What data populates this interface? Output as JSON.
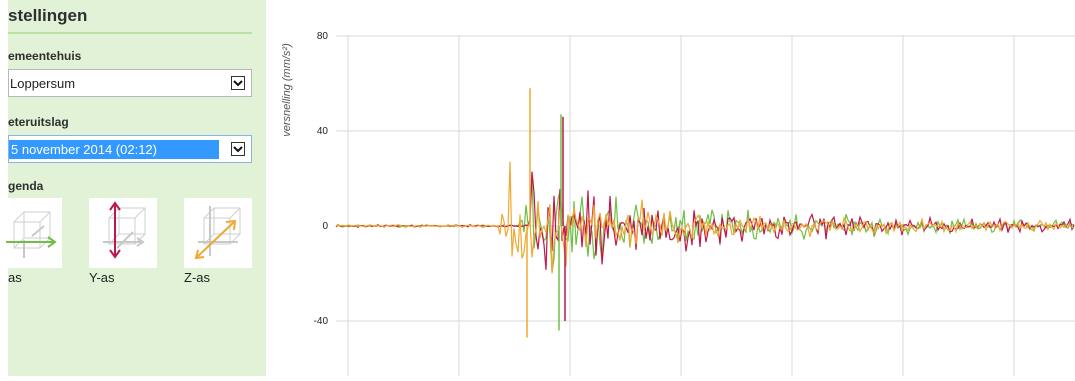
{
  "sidebar": {
    "title": "stellingen",
    "gemeentehuis_label": "emeentehuis",
    "location_select": {
      "value": "Loppersum"
    },
    "meteruitslag_label": "eteruitslag",
    "event_select": {
      "value": "5 november 2014 (02:12)"
    },
    "legenda_label": "genda",
    "legend": [
      {
        "label": "as",
        "axis": "x",
        "color": "#6fbf44"
      },
      {
        "label": "Y-as",
        "axis": "y",
        "color": "#c0174a"
      },
      {
        "label": "Z-as",
        "axis": "z",
        "color": "#f0a830"
      }
    ]
  },
  "chart_data": {
    "type": "line",
    "ylabel": "versnelling (mm/s²)",
    "yticks": [
      80,
      40,
      0,
      -40
    ],
    "ylim": [
      -65,
      80
    ],
    "grid": true,
    "series": [
      {
        "axis": "x",
        "color": "#6fbf44"
      },
      {
        "axis": "y",
        "color": "#c0174a"
      },
      {
        "axis": "z",
        "color": "#f0a830"
      }
    ],
    "notes_visible_peaks": {
      "z_max": 58,
      "z_min": -47,
      "y_max": 46,
      "y_min": -40,
      "x_max": 47,
      "x_min": -44
    }
  }
}
